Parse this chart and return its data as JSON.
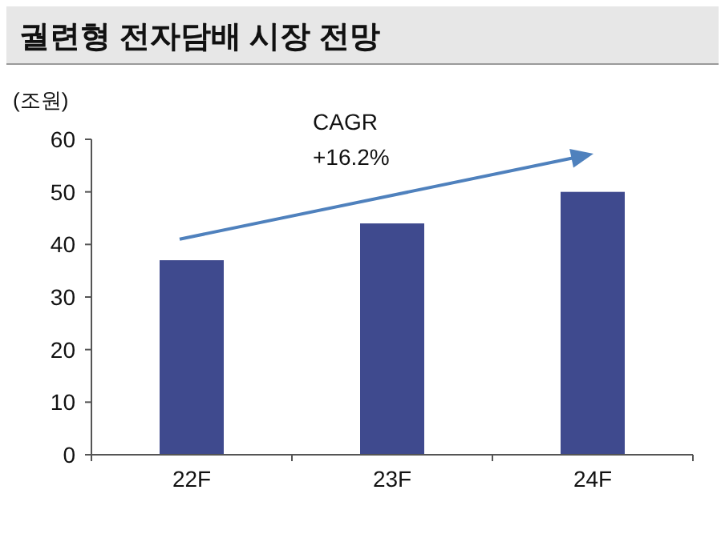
{
  "chart_data": {
    "type": "bar",
    "title": "궐련형 전자담배 시장 전망",
    "ylabel": "(조원)",
    "categories": [
      "22F",
      "23F",
      "24F"
    ],
    "values": [
      37,
      44,
      50
    ],
    "color": "#3f4a8e",
    "ylim": [
      0,
      60
    ],
    "yticks": [
      0,
      10,
      20,
      30,
      40,
      50,
      60
    ],
    "grid": false,
    "annotations": [
      "CAGR\n+16.2%"
    ]
  }
}
